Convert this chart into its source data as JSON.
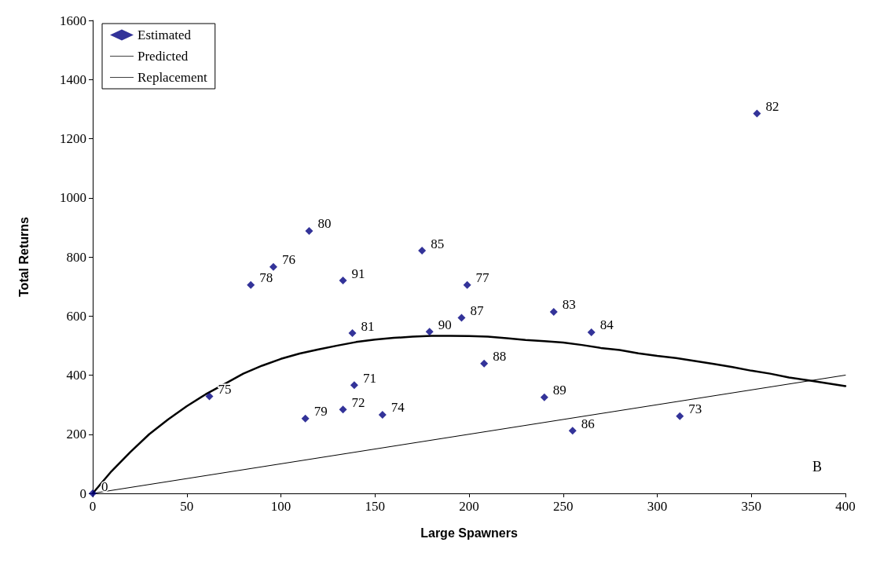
{
  "chart_data": {
    "type": "scatter",
    "xlabel": "Large Spawners",
    "ylabel": "Total Returns",
    "legend": "top left",
    "grid": false,
    "xlim": [
      0,
      400
    ],
    "xticks": [
      0,
      50,
      100,
      150,
      200,
      250,
      300,
      350,
      400
    ],
    "ylim": [
      0,
      1600
    ],
    "yticks": [
      0,
      200,
      400,
      600,
      800,
      1000,
      1200,
      1400,
      1600
    ],
    "annotations": [
      "B",
      {
        "text": "0",
        "x": 0,
        "y": 0
      },
      {
        "text": "82",
        "x": 353,
        "y": 1285
      },
      {
        "text": "80",
        "x": 115,
        "y": 888
      },
      {
        "text": "76",
        "x": 96,
        "y": 766
      },
      {
        "text": "78",
        "x": 84,
        "y": 705
      },
      {
        "text": "91",
        "x": 133,
        "y": 720
      },
      {
        "text": "85",
        "x": 175,
        "y": 821
      },
      {
        "text": "77",
        "x": 199,
        "y": 705
      },
      {
        "text": "87",
        "x": 196,
        "y": 594
      },
      {
        "text": "83",
        "x": 245,
        "y": 614
      },
      {
        "text": "84",
        "x": 265,
        "y": 545
      },
      {
        "text": "81",
        "x": 138,
        "y": 542
      },
      {
        "text": "90",
        "x": 179,
        "y": 547
      },
      {
        "text": "88",
        "x": 208,
        "y": 439
      },
      {
        "text": "71",
        "x": 139,
        "y": 366
      },
      {
        "text": "75",
        "x": 62,
        "y": 328
      },
      {
        "text": "89",
        "x": 240,
        "y": 325
      },
      {
        "text": "72",
        "x": 133,
        "y": 284
      },
      {
        "text": "79",
        "x": 113,
        "y": 253
      },
      {
        "text": "74",
        "x": 154,
        "y": 266
      },
      {
        "text": "86",
        "x": 255,
        "y": 212
      },
      {
        "text": "73",
        "x": 312,
        "y": 261
      }
    ],
    "series": [
      {
        "name": "Estimated",
        "marker": "diamond",
        "color": "#000080",
        "x": [
          0,
          353,
          115,
          96,
          84,
          133,
          175,
          199,
          196,
          245,
          265,
          138,
          179,
          208,
          139,
          62,
          240,
          133,
          113,
          154,
          255,
          312
        ],
        "values": [
          0,
          1285,
          888,
          766,
          705,
          720,
          821,
          705,
          594,
          614,
          545,
          542,
          547,
          439,
          366,
          328,
          325,
          284,
          253,
          266,
          212,
          261
        ]
      },
      {
        "name": "Predicted",
        "type": "line",
        "marker": "none",
        "line_style": "solid",
        "color": "#000000",
        "x": [
          0,
          10,
          20,
          30,
          40,
          50,
          60,
          70,
          80,
          90,
          100,
          110,
          120,
          130,
          140,
          150,
          160,
          170,
          180,
          190,
          200,
          210,
          220,
          230,
          240,
          250,
          260,
          270,
          280,
          290,
          300,
          310,
          320,
          330,
          340,
          350,
          360,
          370,
          380,
          390,
          400
        ],
        "values": [
          0,
          75,
          140,
          200,
          250,
          295,
          335,
          370,
          405,
          432,
          455,
          473,
          487,
          500,
          512,
          520,
          526,
          530,
          533,
          533,
          532,
          530,
          525,
          519,
          515,
          510,
          502,
          492,
          485,
          474,
          465,
          458,
          448,
          438,
          427,
          415,
          405,
          392,
          383,
          373,
          363
        ]
      },
      {
        "name": "Replacement",
        "type": "line",
        "marker": "none",
        "line_style": "solid",
        "color": "#000000",
        "x": [
          0,
          400
        ],
        "values": [
          0,
          400
        ]
      }
    ]
  }
}
